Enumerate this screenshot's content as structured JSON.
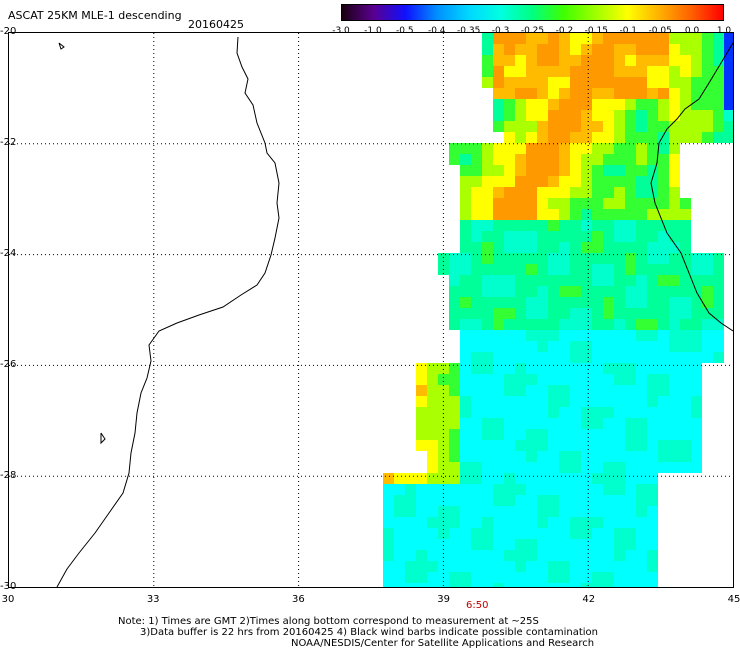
{
  "header": {
    "title": "ASCAT 25KM MLE-1 descending",
    "date": "20160425"
  },
  "colorbar": {
    "labels": [
      "-3.0",
      "-1.0",
      "-0.5",
      "-0.4",
      "-0.35",
      "-0.3",
      "-0.25",
      "-0.2",
      "-0.15",
      "-0.1",
      "-0.05",
      "0.0",
      "1.0"
    ],
    "colors": [
      "#1a0010",
      "#5a0090",
      "#1010ff",
      "#0090ff",
      "#00d8ff",
      "#00ffe0",
      "#00ff80",
      "#40ff00",
      "#a0ff00",
      "#ffff00",
      "#ffb000",
      "#ff6000",
      "#ff0000"
    ]
  },
  "map": {
    "lat_labels": [
      "-20",
      "-22",
      "-24",
      "-26",
      "-28",
      "-30"
    ],
    "lon_labels": [
      "30",
      "33",
      "36",
      "39",
      "42",
      "45"
    ],
    "time_label": "6:50"
  },
  "footer": {
    "line1": "Note: 1) Times are GMT 2)Times along bottom correspond to measurement at ~25S",
    "line2": "3)Data buffer is 22 hrs from 20160425 4) Black wind barbs indicate possible contamination",
    "line3": "NOAA/NESDIS/Center for Satellite Applications and Research"
  }
}
